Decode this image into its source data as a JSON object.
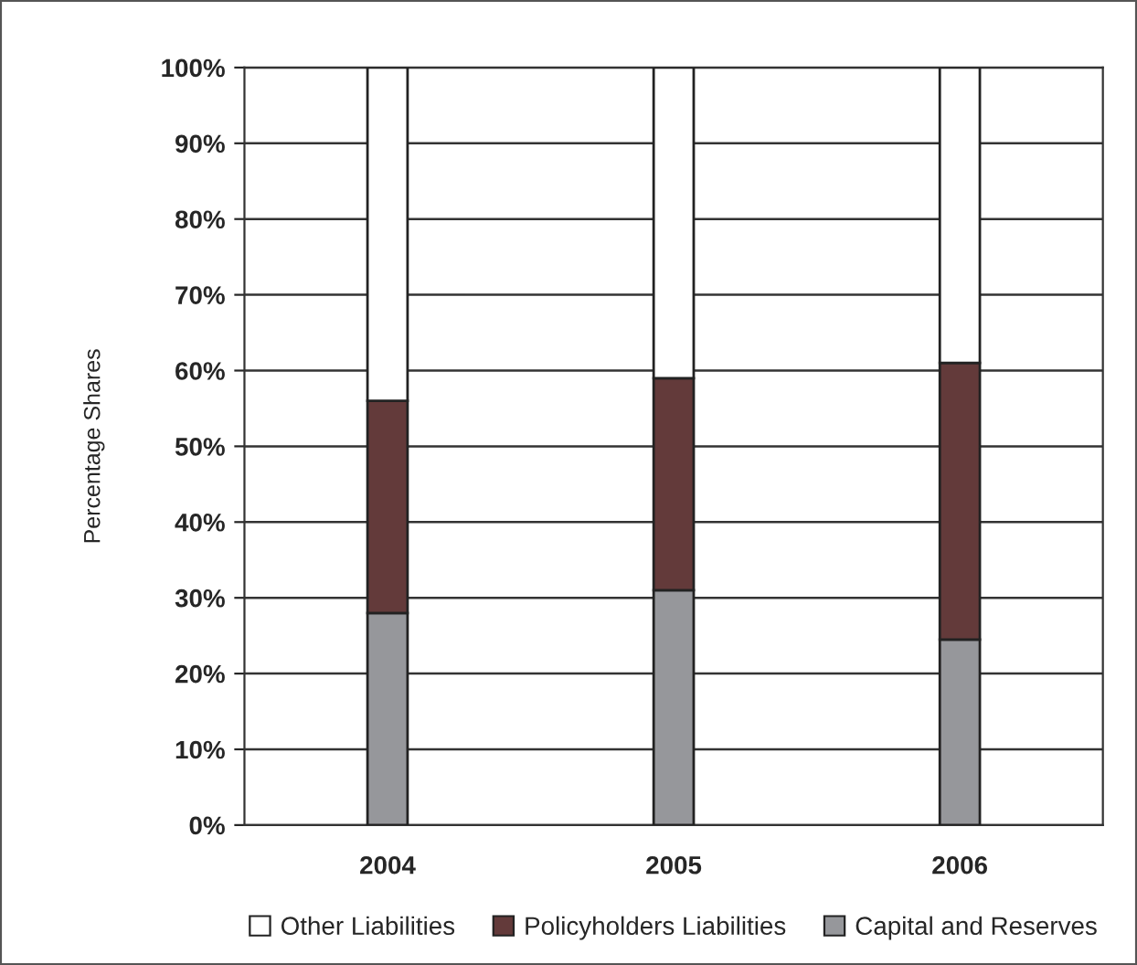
{
  "chart_data": {
    "type": "bar",
    "stacked": true,
    "ylabel": "Percentage Shares",
    "categories": [
      "2004",
      "2005",
      "2006"
    ],
    "series": [
      {
        "name": "Capital and Reserves",
        "color": "#96979b",
        "values": [
          28,
          31,
          24.5
        ]
      },
      {
        "name": "Policyholders Liabilities",
        "color": "#633a3a",
        "values": [
          28,
          28,
          36.5
        ]
      },
      {
        "name": "Other Liabilities",
        "color": "#ffffff",
        "values": [
          44,
          41,
          39
        ]
      }
    ],
    "ylim": [
      0,
      100
    ],
    "yticks": [
      {
        "value": 0,
        "label": "0%"
      },
      {
        "value": 10,
        "label": "10%"
      },
      {
        "value": 20,
        "label": "20%"
      },
      {
        "value": 30,
        "label": "30%"
      },
      {
        "value": 40,
        "label": "40%"
      },
      {
        "value": 50,
        "label": "50%"
      },
      {
        "value": 60,
        "label": "60%"
      },
      {
        "value": 70,
        "label": "70%"
      },
      {
        "value": 80,
        "label": "80%"
      },
      {
        "value": 90,
        "label": "90%"
      },
      {
        "value": 100,
        "label": "100%"
      }
    ],
    "grid": "y",
    "legend": "bottom"
  }
}
